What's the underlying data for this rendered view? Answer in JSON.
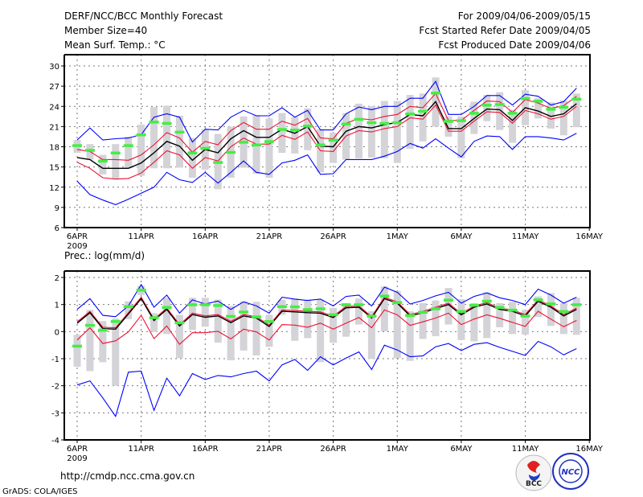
{
  "header": {
    "title": "DERF/NCC/BCC Monthly Forecast",
    "member_size": "Member Size=40",
    "variable_top": "Mean Surf. Temp.: °C",
    "period": "For 2009/04/06-2009/05/15",
    "started": "Fcst Started Refer Date 2009/04/05",
    "produced": "Fcst Produced Date 2009/04/06"
  },
  "footer": {
    "url": "http://cmdp.ncc.cma.gov.cn",
    "grads": "GrADS: COLA/IGES",
    "logo_left": "BCC",
    "logo_right": "NCC"
  },
  "colors": {
    "max_min": "#0000ff",
    "spread": "#ee1133",
    "mean": "#000000",
    "box": "#d3d3d8",
    "marker": "#44ee44"
  },
  "chart_data": [
    {
      "type": "line",
      "title": "Mean Surf. Temp.: °C",
      "x_start": "2009-04-06",
      "xticks": [
        {
          "day": 0,
          "label": "6APR"
        },
        {
          "day": 5,
          "label": "11APR"
        },
        {
          "day": 10,
          "label": "16APR"
        },
        {
          "day": 15,
          "label": "21APR"
        },
        {
          "day": 20,
          "label": "26APR"
        },
        {
          "day": 25,
          "label": "1MAY"
        },
        {
          "day": 30,
          "label": "6MAY"
        },
        {
          "day": 35,
          "label": "11MAY"
        },
        {
          "day": 40,
          "label": "16MAY"
        }
      ],
      "year_label": "2009",
      "xlim": [
        0,
        40
      ],
      "ylim": [
        6,
        30
      ],
      "yticks": [
        6,
        9,
        12,
        15,
        18,
        21,
        24,
        27,
        30
      ],
      "grid": true,
      "series": {
        "max": [
          19.0,
          20.8,
          19.0,
          19.2,
          19.3,
          19.8,
          22.4,
          22.9,
          22.4,
          18.7,
          20.6,
          20.5,
          22.4,
          23.4,
          22.6,
          22.6,
          23.8,
          22.4,
          23.4,
          20.5,
          20.5,
          22.9,
          23.9,
          23.5,
          24.0,
          24.0,
          25.2,
          25.2,
          27.7,
          22.8,
          22.8,
          24.0,
          25.6,
          25.6,
          24.2,
          25.8,
          25.5,
          24.2,
          24.7,
          26.7
        ],
        "upper": [
          17.6,
          17.3,
          16.1,
          16.1,
          16.0,
          16.8,
          18.3,
          20.1,
          19.3,
          17.2,
          18.8,
          18.3,
          20.4,
          21.6,
          20.6,
          20.6,
          21.8,
          21.2,
          22.2,
          19.3,
          19.2,
          21.5,
          22.2,
          22.0,
          22.5,
          22.8,
          24.0,
          23.8,
          25.9,
          21.9,
          21.9,
          23.4,
          24.8,
          24.7,
          23.1,
          25.0,
          24.5,
          23.7,
          24.1,
          25.5
        ],
        "mean": [
          16.4,
          16.1,
          14.8,
          14.8,
          14.8,
          15.6,
          17.1,
          18.8,
          18.1,
          16.0,
          17.6,
          17.1,
          19.2,
          20.4,
          19.4,
          19.4,
          20.6,
          20.0,
          21.0,
          18.1,
          18.0,
          20.3,
          21.0,
          20.8,
          21.3,
          21.6,
          22.8,
          22.6,
          24.7,
          20.7,
          20.7,
          22.2,
          23.6,
          23.5,
          21.9,
          23.8,
          23.3,
          22.5,
          22.9,
          24.4
        ],
        "lower": [
          15.7,
          14.8,
          13.4,
          13.2,
          13.3,
          14.1,
          15.7,
          17.4,
          16.8,
          14.8,
          16.4,
          15.9,
          18.0,
          19.3,
          18.4,
          18.4,
          19.7,
          19.1,
          20.2,
          17.4,
          17.3,
          19.6,
          20.4,
          20.2,
          20.7,
          21.0,
          22.3,
          22.1,
          24.2,
          20.3,
          20.3,
          21.8,
          23.2,
          23.1,
          21.5,
          23.4,
          22.9,
          22.1,
          22.5,
          24.0
        ],
        "min": [
          12.9,
          10.9,
          10.1,
          9.4,
          10.2,
          11.1,
          12.0,
          14.2,
          13.1,
          12.7,
          14.2,
          12.6,
          14.2,
          15.9,
          14.2,
          13.9,
          15.6,
          16.0,
          16.8,
          13.9,
          14.0,
          16.1,
          16.1,
          16.1,
          16.6,
          17.3,
          18.5,
          17.8,
          19.2,
          17.8,
          16.5,
          18.8,
          19.6,
          19.5,
          17.6,
          19.5,
          19.5,
          19.3,
          19.0,
          20.0
        ]
      },
      "box_high": [
        19.0,
        18.4,
        16.8,
        18.4,
        19.5,
        21.3,
        23.9,
        24.1,
        22.6,
        19.3,
        20.6,
        19.9,
        21.0,
        22.5,
        22.7,
        22.2,
        23.0,
        22.4,
        23.7,
        20.6,
        20.1,
        23.0,
        24.4,
        24.0,
        24.8,
        24.8,
        25.7,
        25.9,
        28.3,
        22.5,
        22.5,
        24.7,
        25.7,
        26.1,
        23.5,
        26.4,
        25.2,
        24.6,
        24.9,
        25.9
      ],
      "box_low": [
        17.1,
        16.1,
        13.9,
        13.2,
        14.8,
        13.7,
        14.8,
        14.8,
        14.9,
        13.4,
        14.6,
        11.7,
        13.4,
        14.9,
        14.0,
        13.4,
        17.1,
        17.0,
        17.5,
        14.2,
        15.6,
        16.1,
        16.3,
        16.4,
        16.3,
        15.6,
        17.7,
        18.8,
        21.0,
        19.5,
        16.3,
        19.9,
        21.8,
        20.5,
        18.6,
        21.2,
        22.2,
        20.7,
        19.7,
        20.9
      ],
      "marker": [
        18.2,
        17.5,
        15.9,
        17.1,
        18.2,
        19.8,
        21.7,
        21.5,
        20.2,
        17.1,
        17.8,
        15.7,
        17.2,
        18.7,
        18.3,
        18.8,
        20.6,
        20.5,
        21.1,
        18.3,
        19.0,
        21.4,
        22.1,
        21.6,
        21.5,
        21.6,
        22.9,
        23.3,
        26.0,
        21.8,
        21.9,
        23.0,
        24.2,
        24.3,
        23.0,
        25.2,
        24.8,
        23.6,
        23.9,
        25.1
      ]
    },
    {
      "type": "line",
      "title": "Prec.: log(mm/d)",
      "x_start": "2009-04-06",
      "xticks": [
        {
          "day": 0,
          "label": "6APR"
        },
        {
          "day": 5,
          "label": "11APR"
        },
        {
          "day": 10,
          "label": "16APR"
        },
        {
          "day": 15,
          "label": "21APR"
        },
        {
          "day": 20,
          "label": "26APR"
        },
        {
          "day": 25,
          "label": "1MAY"
        },
        {
          "day": 30,
          "label": "6MAY"
        },
        {
          "day": 35,
          "label": "11MAY"
        },
        {
          "day": 40,
          "label": "16MAY"
        }
      ],
      "year_label": "2009",
      "xlim": [
        0,
        40
      ],
      "ylim": [
        -4,
        2
      ],
      "yticks": [
        -4,
        -3,
        -2,
        -1,
        0,
        1,
        2
      ],
      "grid": true,
      "series": {
        "max": [
          0.82,
          1.22,
          0.6,
          0.55,
          0.95,
          1.74,
          0.9,
          1.35,
          0.68,
          1.17,
          1.02,
          1.13,
          0.82,
          1.1,
          0.95,
          0.68,
          1.27,
          1.2,
          1.15,
          1.2,
          0.95,
          1.3,
          1.35,
          0.95,
          1.64,
          1.45,
          1.02,
          1.15,
          1.32,
          1.45,
          1.05,
          1.3,
          1.43,
          1.25,
          1.15,
          1.0,
          1.57,
          1.35,
          1.05,
          1.27
        ],
        "upper": [
          0.36,
          0.75,
          0.16,
          0.14,
          0.7,
          1.27,
          0.46,
          0.87,
          0.26,
          0.68,
          0.58,
          0.63,
          0.38,
          0.63,
          0.55,
          0.24,
          0.8,
          0.78,
          0.75,
          0.73,
          0.57,
          0.93,
          0.95,
          0.55,
          1.27,
          1.1,
          0.63,
          0.75,
          0.9,
          1.05,
          0.67,
          0.95,
          1.07,
          0.87,
          0.8,
          0.63,
          1.17,
          0.95,
          0.63,
          0.87
        ],
        "mean": [
          0.31,
          0.7,
          0.11,
          0.09,
          0.65,
          1.22,
          0.41,
          0.82,
          0.21,
          0.63,
          0.53,
          0.58,
          0.33,
          0.58,
          0.5,
          0.19,
          0.75,
          0.73,
          0.7,
          0.68,
          0.52,
          0.88,
          0.9,
          0.5,
          1.22,
          1.05,
          0.58,
          0.7,
          0.85,
          1.0,
          0.62,
          0.9,
          1.02,
          0.82,
          0.75,
          0.58,
          1.12,
          0.9,
          0.58,
          0.82
        ],
        "lower": [
          -0.31,
          0.14,
          -0.44,
          -0.34,
          -0.01,
          0.6,
          -0.26,
          0.21,
          -0.47,
          -0.04,
          -0.04,
          0.01,
          -0.27,
          0.09,
          -0.01,
          -0.31,
          0.26,
          0.24,
          0.16,
          0.31,
          0.09,
          0.31,
          0.52,
          0.14,
          0.8,
          0.62,
          0.23,
          0.36,
          0.5,
          0.68,
          0.26,
          0.46,
          0.62,
          0.49,
          0.34,
          0.19,
          0.75,
          0.46,
          0.18,
          0.41
        ],
        "min": [
          -1.97,
          -1.82,
          -2.45,
          -3.13,
          -1.5,
          -1.46,
          -2.91,
          -1.72,
          -2.37,
          -1.55,
          -1.77,
          -1.62,
          -1.67,
          -1.55,
          -1.46,
          -1.82,
          -1.23,
          -1.03,
          -1.43,
          -0.93,
          -1.23,
          -0.98,
          -0.75,
          -1.4,
          -0.5,
          -0.68,
          -0.93,
          -0.9,
          -0.56,
          -0.44,
          -0.7,
          -0.47,
          -0.41,
          -0.58,
          -0.73,
          -0.88,
          -0.36,
          -0.56,
          -0.86,
          -0.63
        ]
      },
      "box_high": [
        -0.12,
        0.8,
        0.39,
        0.48,
        1.12,
        1.69,
        0.68,
        1.25,
        0.62,
        1.25,
        1.25,
        1.18,
        0.95,
        1.12,
        1.1,
        0.62,
        1.18,
        1.22,
        1.18,
        1.18,
        0.88,
        1.05,
        1.22,
        0.75,
        1.67,
        1.5,
        0.75,
        1.05,
        1.15,
        1.61,
        1.2,
        1.05,
        1.45,
        1.05,
        1.1,
        0.8,
        1.3,
        1.42,
        1.05,
        1.25
      ],
      "box_low": [
        -1.3,
        -1.46,
        -1.13,
        -2.0,
        0.46,
        1.35,
        -0.01,
        -0.09,
        -0.98,
        0.06,
        0.18,
        -0.41,
        -1.06,
        -0.7,
        -0.88,
        -0.56,
        0.62,
        -0.34,
        -0.24,
        -1.13,
        -0.41,
        -0.19,
        0.26,
        -1.01,
        0.01,
        -0.98,
        -1.08,
        -0.27,
        -0.17,
        0.26,
        -0.31,
        -0.36,
        -0.24,
        0.16,
        -0.09,
        -0.11,
        0.54,
        0.21,
        -0.09,
        -0.12
      ],
      "marker": [
        -0.53,
        0.24,
        0.06,
        0.38,
        0.93,
        1.54,
        0.52,
        0.9,
        0.33,
        1.0,
        1.0,
        0.97,
        0.57,
        0.73,
        0.55,
        0.38,
        0.93,
        0.92,
        0.82,
        0.85,
        0.63,
        1.0,
        1.0,
        0.58,
        1.32,
        1.08,
        0.6,
        0.72,
        0.85,
        1.17,
        0.75,
        0.98,
        1.13,
        0.9,
        0.8,
        0.58,
        1.18,
        1.03,
        0.75,
        1.0
      ]
    }
  ]
}
